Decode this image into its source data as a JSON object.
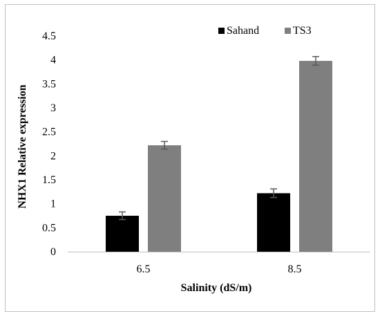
{
  "chart_data": {
    "type": "bar",
    "categories": [
      "6.5",
      "8.5"
    ],
    "series": [
      {
        "name": "Sahand",
        "values": [
          0.75,
          1.22
        ],
        "errors": [
          0.08,
          0.09
        ],
        "color": "#000000"
      },
      {
        "name": "TS3",
        "values": [
          2.22,
          3.98
        ],
        "errors": [
          0.08,
          0.09
        ],
        "color": "#7f7f7f"
      }
    ],
    "title": "",
    "xlabel": "Salinity (dS/m)",
    "ylabel": "NHX1 Relative expression",
    "ylim": [
      0,
      4.5
    ],
    "yticks": [
      "0",
      "0.5",
      "1",
      "1.5",
      "2",
      "2.5",
      "3",
      "3.5",
      "4",
      "4.5"
    ],
    "grid": false,
    "legend_position": "top"
  }
}
